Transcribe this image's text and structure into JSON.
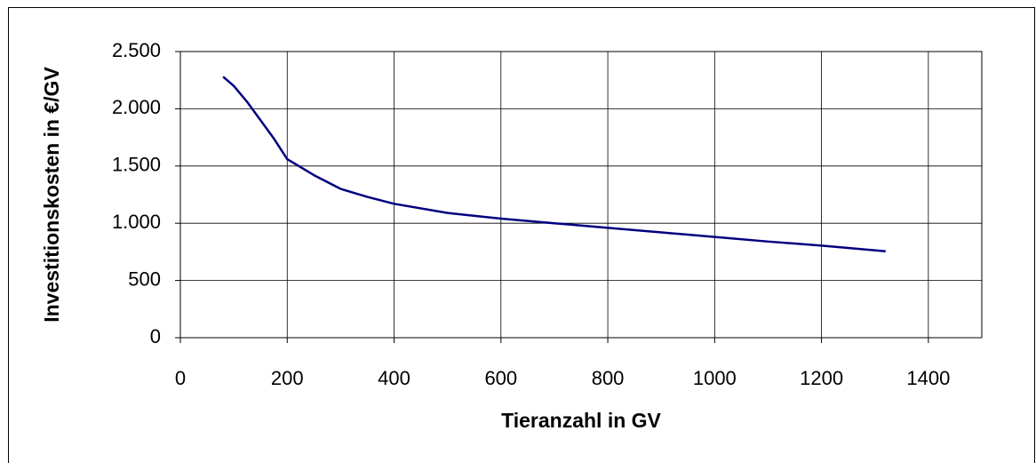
{
  "chart_data": {
    "type": "line",
    "xlabel": "Tieranzahl in GV",
    "ylabel": "Investitionskosten in €/GV",
    "x": [
      80,
      100,
      125,
      150,
      175,
      200,
      250,
      300,
      350,
      400,
      500,
      600,
      700,
      800,
      900,
      1000,
      1100,
      1200,
      1320
    ],
    "series": [
      {
        "color": "#000080",
        "values": [
          2280,
          2200,
          2060,
          1900,
          1740,
          1560,
          1420,
          1300,
          1230,
          1170,
          1090,
          1040,
          1000,
          960,
          920,
          880,
          840,
          805,
          755
        ]
      }
    ],
    "xlim": [
      0,
      1500
    ],
    "xticks": [
      0,
      200,
      400,
      600,
      800,
      1000,
      1200,
      1400
    ],
    "ylim": [
      0,
      2500
    ],
    "yticks": [
      0,
      500,
      {
        "value": 1000,
        "label": "1.000"
      },
      {
        "value": 1500,
        "label": "1.500"
      },
      {
        "value": 2000,
        "label": "2.000"
      },
      {
        "value": 2500,
        "label": "2.500"
      }
    ],
    "grid": true
  }
}
